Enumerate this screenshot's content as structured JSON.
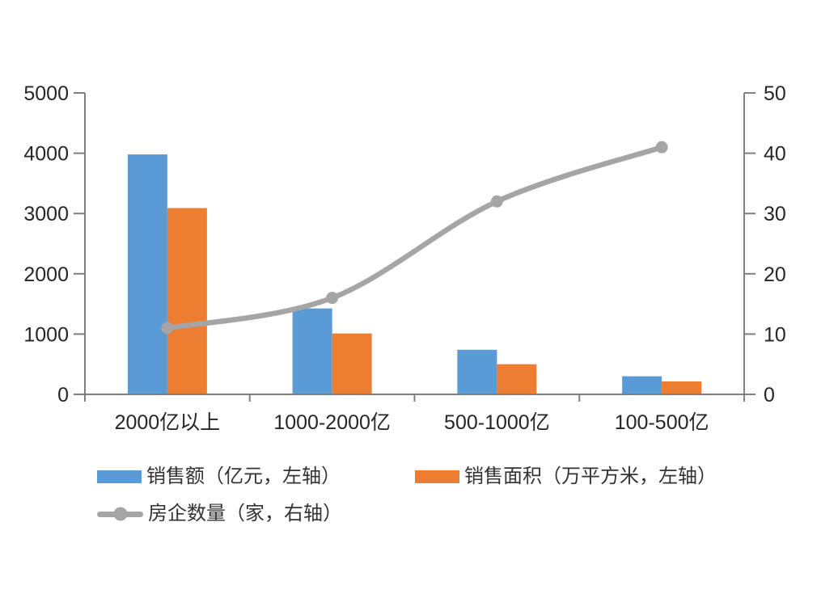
{
  "chart_data": {
    "type": "combo-bar-line",
    "categories": [
      "2000亿以上",
      "1000-2000亿",
      "500-1000亿",
      "100-500亿"
    ],
    "series": [
      {
        "name": "销售额（亿元，左轴）",
        "chart_type": "bar",
        "axis": "left",
        "color": "#5B9BD5",
        "values": [
          3980,
          1425,
          740,
          300
        ]
      },
      {
        "name": "销售面积（万平方米，左轴）",
        "chart_type": "bar",
        "axis": "left",
        "color": "#ED7D31",
        "values": [
          3090,
          1010,
          500,
          215
        ]
      },
      {
        "name": "房企数量（家，右轴）",
        "chart_type": "line",
        "axis": "right",
        "color": "#A5A5A5",
        "values": [
          11,
          16,
          32,
          41
        ]
      }
    ],
    "left_axis": {
      "min": 0,
      "max": 5000,
      "step": 1000,
      "tick_labels": [
        "0",
        "1000",
        "2000",
        "3000",
        "4000",
        "5000"
      ]
    },
    "right_axis": {
      "min": 0,
      "max": 50,
      "step": 10,
      "tick_labels": [
        "0",
        "10",
        "20",
        "30",
        "40",
        "50"
      ]
    },
    "grid": false,
    "legend_position": "bottom-left",
    "axis_color": "#7F7F7F",
    "tick_label_color": "#262626",
    "background_color": "#FFFFFF"
  }
}
